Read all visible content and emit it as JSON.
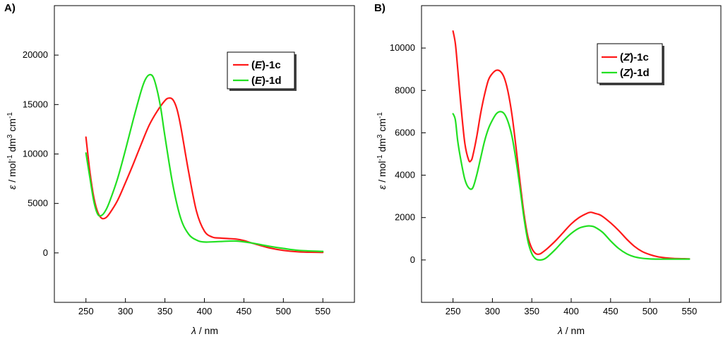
{
  "chart_data": [
    {
      "type": "line",
      "panel_label": "A)",
      "xlabel_sym": "λ",
      "xlabel_unit": " / nm",
      "ylabel_parts": [
        "ε",
        " / mol",
        "-1",
        " dm",
        "3",
        " cm",
        "-1"
      ],
      "xlim": [
        210,
        590
      ],
      "ylim": [
        -5000,
        25000
      ],
      "x_ticks": [
        250,
        300,
        350,
        400,
        450,
        500,
        550
      ],
      "y_ticks": [
        0,
        5000,
        10000,
        15000,
        20000
      ],
      "grid": false,
      "legend_position": "top-right",
      "series": [
        {
          "name_prefix": "(",
          "name_italic": "E",
          "name_suffix": ")-1c",
          "color": "#ff1a1a",
          "x": [
            250,
            255,
            260,
            265,
            270,
            275,
            280,
            290,
            300,
            310,
            320,
            330,
            340,
            350,
            355,
            360,
            365,
            370,
            380,
            390,
            400,
            410,
            420,
            430,
            440,
            450,
            460,
            480,
            500,
            520,
            550
          ],
          "y": [
            11700,
            8200,
            5600,
            4100,
            3500,
            3550,
            4000,
            5300,
            7100,
            9000,
            11000,
            12900,
            14300,
            15400,
            15650,
            15500,
            14600,
            12800,
            8200,
            4200,
            2200,
            1600,
            1500,
            1450,
            1400,
            1250,
            1000,
            550,
            250,
            100,
            50
          ]
        },
        {
          "name_prefix": "(",
          "name_italic": "E",
          "name_suffix": ")-1d",
          "color": "#22e022",
          "x": [
            250,
            255,
            260,
            265,
            270,
            275,
            280,
            290,
            300,
            310,
            320,
            325,
            330,
            335,
            340,
            345,
            350,
            360,
            370,
            380,
            390,
            400,
            420,
            440,
            460,
            480,
            500,
            520,
            550
          ],
          "y": [
            10100,
            7600,
            5200,
            3900,
            3800,
            4300,
            5200,
            7500,
            10400,
            13500,
            16400,
            17500,
            18000,
            17800,
            16500,
            14500,
            11800,
            6900,
            3500,
            1900,
            1300,
            1100,
            1150,
            1200,
            1000,
            700,
            450,
            250,
            150
          ]
        }
      ]
    },
    {
      "type": "line",
      "panel_label": "B)",
      "xlabel_sym": "λ",
      "xlabel_unit": " / nm",
      "ylabel_parts": [
        "ε",
        " / mol",
        "-1",
        " dm",
        "3",
        " cm",
        "-1"
      ],
      "xlim": [
        210,
        590
      ],
      "ylim": [
        -2000,
        12000
      ],
      "x_ticks": [
        250,
        300,
        350,
        400,
        450,
        500,
        550
      ],
      "y_ticks": [
        0,
        2000,
        4000,
        6000,
        8000,
        10000
      ],
      "grid": false,
      "legend_position": "top-right",
      "series": [
        {
          "name_prefix": "(",
          "name_italic": "Z",
          "name_suffix": ")-1c",
          "color": "#ff1a1a",
          "x": [
            250,
            253,
            256,
            260,
            265,
            270,
            273,
            275,
            280,
            285,
            290,
            295,
            300,
            305,
            310,
            315,
            320,
            325,
            330,
            335,
            340,
            345,
            350,
            355,
            360,
            365,
            370,
            380,
            390,
            400,
            410,
            420,
            425,
            430,
            435,
            440,
            450,
            460,
            470,
            480,
            490,
            500,
            510,
            520,
            530,
            540,
            550
          ],
          "y": [
            10800,
            10200,
            9000,
            7300,
            5500,
            4700,
            4700,
            4900,
            5800,
            6900,
            7800,
            8500,
            8800,
            8950,
            8900,
            8600,
            7900,
            6800,
            5300,
            3700,
            2200,
            1100,
            550,
            300,
            280,
            400,
            550,
            900,
            1300,
            1700,
            2000,
            2200,
            2250,
            2200,
            2150,
            2050,
            1750,
            1400,
            1000,
            650,
            400,
            250,
            150,
            100,
            70,
            60,
            50
          ]
        },
        {
          "name_prefix": "(",
          "name_italic": "Z",
          "name_suffix": ")-1d",
          "color": "#22e022",
          "x": [
            250,
            253,
            256,
            260,
            265,
            270,
            275,
            280,
            285,
            290,
            295,
            300,
            305,
            310,
            315,
            320,
            325,
            330,
            335,
            340,
            345,
            350,
            355,
            360,
            365,
            370,
            380,
            390,
            400,
            410,
            420,
            425,
            430,
            440,
            450,
            460,
            470,
            480,
            490,
            500,
            510,
            520,
            530,
            540,
            550
          ],
          "y": [
            6900,
            6600,
            5600,
            4700,
            3800,
            3400,
            3400,
            4000,
            4800,
            5600,
            6200,
            6600,
            6900,
            7000,
            6900,
            6500,
            5800,
            4700,
            3400,
            2000,
            900,
            300,
            50,
            0,
            30,
            150,
            500,
            900,
            1250,
            1500,
            1600,
            1600,
            1550,
            1300,
            900,
            550,
            300,
            150,
            80,
            50,
            40,
            40,
            40,
            40,
            40
          ]
        }
      ]
    }
  ]
}
